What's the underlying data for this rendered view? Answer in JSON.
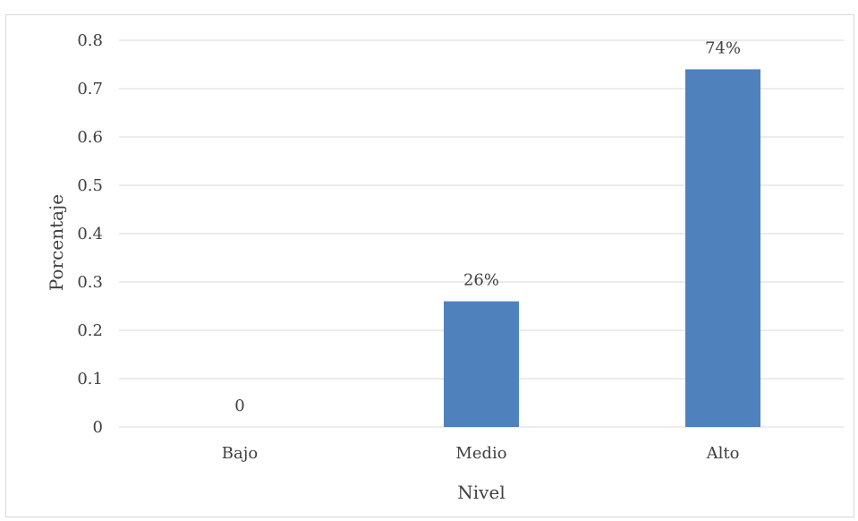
{
  "chart_data": {
    "type": "bar",
    "categories": [
      "Bajo",
      "Medio",
      "Alto"
    ],
    "values": [
      0,
      0.26,
      0.74
    ],
    "data_labels": [
      "0",
      "26%",
      "74%"
    ],
    "xlabel": "Nivel",
    "ylabel": "Porcentaje",
    "ylim": [
      0,
      0.8
    ],
    "yticks": [
      "0",
      "0.1",
      "0.2",
      "0.3",
      "0.4",
      "0.5",
      "0.6",
      "0.7",
      "0.8"
    ],
    "grid": true,
    "legend": "none",
    "bar_color": "#4f81bd",
    "grid_color": "#d9d9d9"
  }
}
